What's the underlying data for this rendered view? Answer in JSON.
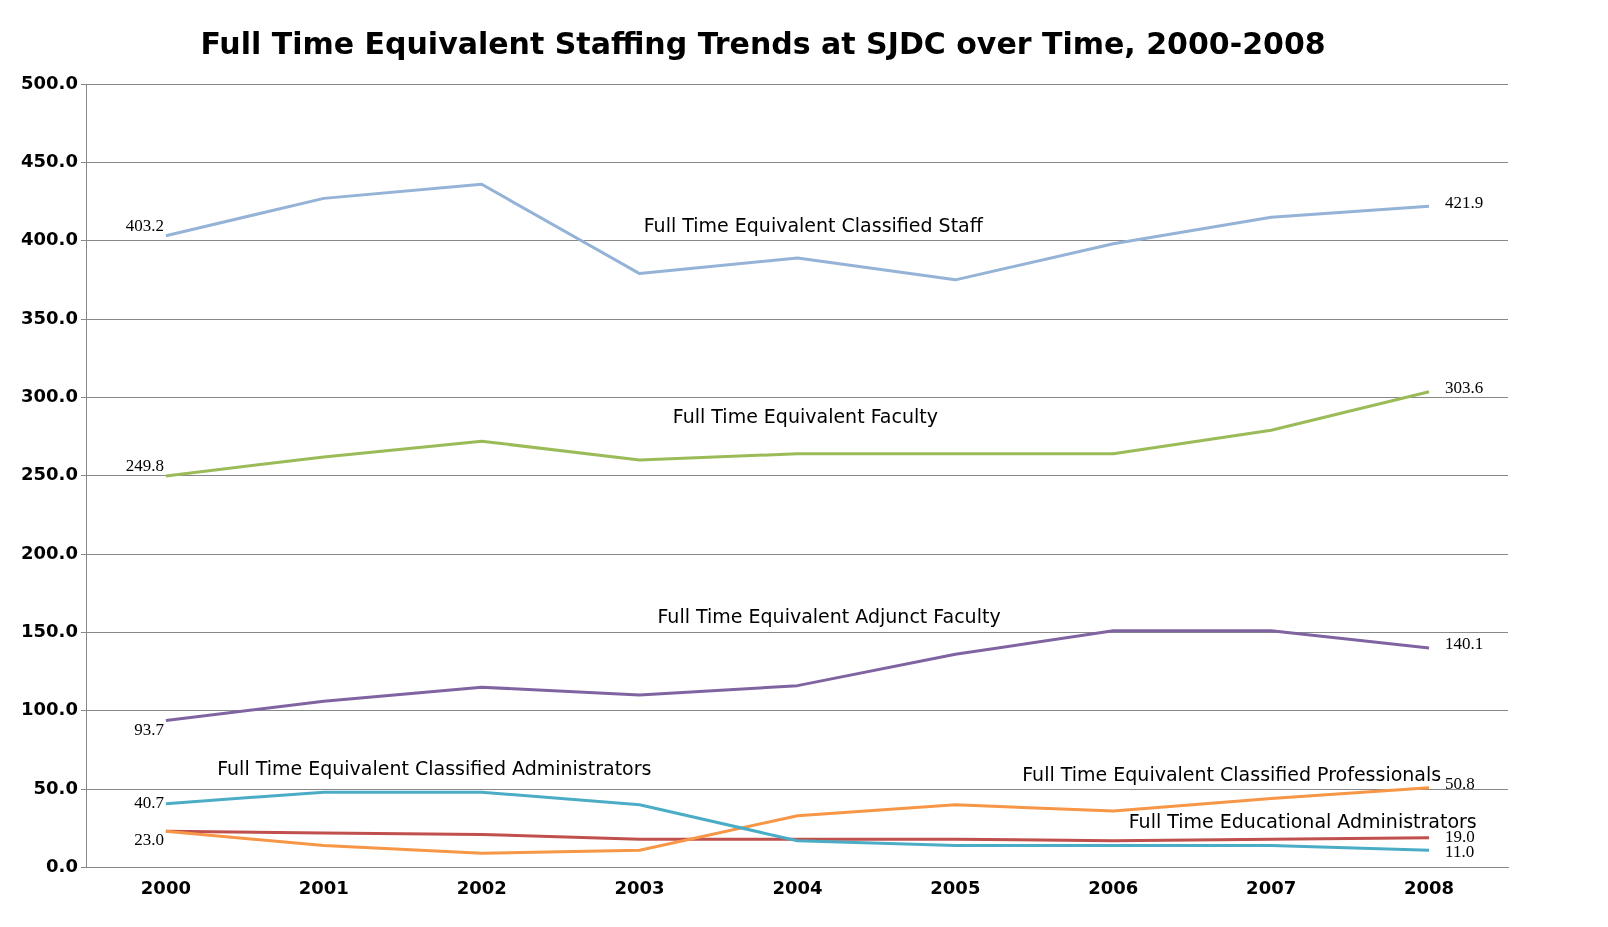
{
  "chart_data": {
    "type": "line",
    "title": "Full Time Equivalent Staffing Trends at SJDC over Time, 2000-2008",
    "categories": [
      "2000",
      "2001",
      "2002",
      "2003",
      "2004",
      "2005",
      "2006",
      "2007",
      "2008"
    ],
    "ylim": [
      0,
      500
    ],
    "yticks": [
      {
        "value": 0,
        "label": "0.0"
      },
      {
        "value": 50,
        "label": "50.0"
      },
      {
        "value": 100,
        "label": "100.0"
      },
      {
        "value": 150,
        "label": "150.0"
      },
      {
        "value": 200,
        "label": "200.0"
      },
      {
        "value": 250,
        "label": "250.0"
      },
      {
        "value": 300,
        "label": "300.0"
      },
      {
        "value": 350,
        "label": "350.0"
      },
      {
        "value": 400,
        "label": "400.0"
      },
      {
        "value": 450,
        "label": "450.0"
      },
      {
        "value": 500,
        "label": "500.0"
      }
    ],
    "grid": "y",
    "legend": false,
    "marker": "none",
    "line_style": "solid",
    "series": [
      {
        "name": "Full Time Equivalent Classified Staff",
        "color": "#95b3d7",
        "values": [
          403.2,
          427,
          436,
          379,
          389,
          375,
          398,
          415,
          421.9
        ],
        "value_labels": [
          "403.2",
          null,
          null,
          null,
          null,
          null,
          null,
          null,
          "421.9"
        ]
      },
      {
        "name": "Full Time Equivalent Faculty",
        "color": "#9bbb59",
        "values": [
          249.8,
          262,
          272,
          260,
          264,
          264,
          264,
          279,
          303.6
        ],
        "value_labels": [
          "249.8",
          null,
          null,
          null,
          null,
          null,
          null,
          null,
          "303.6"
        ]
      },
      {
        "name": "Full Time Equivalent Adjunct Faculty",
        "color": "#8064a2",
        "values": [
          93.7,
          106,
          115,
          110,
          116,
          136,
          151,
          151,
          140.1
        ],
        "value_labels": [
          "93.7",
          null,
          null,
          null,
          null,
          null,
          null,
          null,
          "140.1"
        ]
      },
      {
        "name": "Full Time Equivalent Classified Administrators",
        "color": "#4bacc6",
        "values": [
          40.7,
          48,
          48,
          40,
          17,
          14,
          14,
          14,
          11.0
        ],
        "value_labels": [
          "40.7",
          null,
          null,
          null,
          null,
          null,
          null,
          null,
          "11.0"
        ]
      },
      {
        "name": "Full Time Equivalent Classified Professionals",
        "color": "#f79646",
        "values": [
          23.0,
          14,
          9,
          11,
          33,
          40,
          36,
          44,
          50.8
        ],
        "value_labels": [
          "23.0",
          null,
          null,
          null,
          null,
          null,
          null,
          null,
          "50.8"
        ]
      },
      {
        "name": "Full Time Educational Administrators",
        "color": "#c0504d",
        "values": [
          23.0,
          22,
          21,
          18,
          18,
          18,
          17,
          18,
          19.0
        ],
        "value_labels": [
          null,
          null,
          null,
          null,
          null,
          null,
          null,
          null,
          "19.0"
        ]
      }
    ]
  }
}
